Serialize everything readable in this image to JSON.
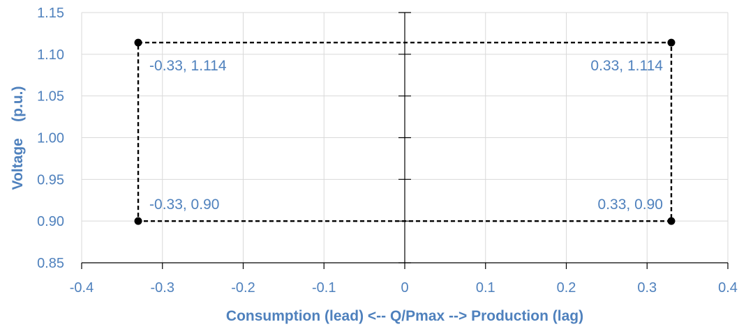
{
  "chart_data": {
    "type": "scatter",
    "xlabel": "Consumption (lead) <-- Q/Pmax --> Production (lag)",
    "ylabel": "Voltage    (p.u.)",
    "xlim": [
      -0.4,
      0.4
    ],
    "ylim": [
      0.85,
      1.15
    ],
    "x_ticks": [
      "-0.4",
      "-0.3",
      "-0.2",
      "-0.1",
      "0",
      "0.1",
      "0.2",
      "0.3",
      "0.4"
    ],
    "y_ticks": [
      "0.85",
      "0.90",
      "0.95",
      "1.00",
      "1.05",
      "1.10",
      "1.15"
    ],
    "grid": true,
    "series": [
      {
        "line_style": "dashed",
        "closed": true,
        "color": "#000000",
        "points": [
          {
            "x": -0.33,
            "y": 1.114,
            "label": "-0.33, 1.114"
          },
          {
            "x": 0.33,
            "y": 1.114,
            "label": "0.33, 1.114"
          },
          {
            "x": 0.33,
            "y": 0.9,
            "label": "0.33, 0.90"
          },
          {
            "x": -0.33,
            "y": 0.9,
            "label": "-0.33, 0.90"
          }
        ]
      }
    ]
  }
}
